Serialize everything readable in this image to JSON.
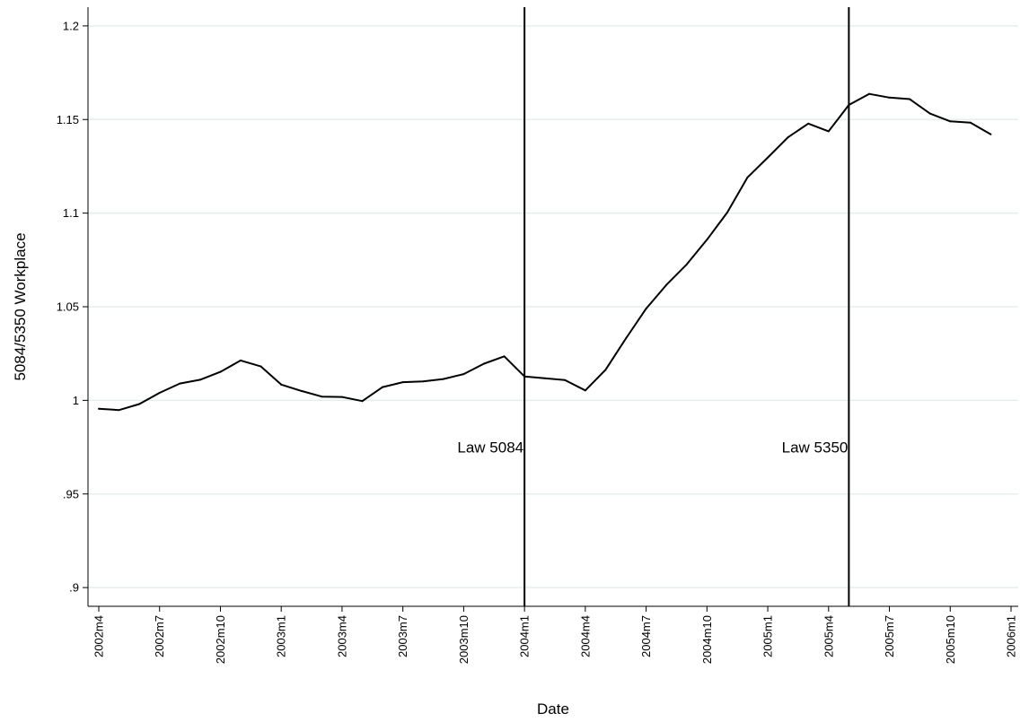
{
  "chart_data": {
    "type": "line",
    "xlabel": "Date",
    "ylabel": "5084/5350 Workplace",
    "ylim": [
      0.89,
      1.21
    ],
    "xlim": [
      "2002m4",
      "2006m1"
    ],
    "grid": true,
    "y_ticks": [
      {
        "value": 0.9,
        "label": ".9"
      },
      {
        "value": 0.95,
        "label": ".95"
      },
      {
        "value": 1.0,
        "label": "1"
      },
      {
        "value": 1.05,
        "label": "1.05"
      },
      {
        "value": 1.1,
        "label": "1.1"
      },
      {
        "value": 1.15,
        "label": "1.15"
      },
      {
        "value": 1.2,
        "label": "1.2"
      }
    ],
    "x_ticks": [
      "2002m4",
      "2002m7",
      "2002m10",
      "2003m1",
      "2003m4",
      "2003m7",
      "2003m10",
      "2004m1",
      "2004m4",
      "2004m7",
      "2004m10",
      "2005m1",
      "2005m4",
      "2005m7",
      "2005m10",
      "2006m1"
    ],
    "series": [
      {
        "color": "#000000",
        "x": [
          "2002m4",
          "2002m5",
          "2002m6",
          "2002m7",
          "2002m8",
          "2002m9",
          "2002m10",
          "2002m11",
          "2002m12",
          "2003m1",
          "2003m2",
          "2003m3",
          "2003m4",
          "2003m5",
          "2003m6",
          "2003m7",
          "2003m8",
          "2003m9",
          "2003m10",
          "2003m11",
          "2003m12",
          "2004m1",
          "2004m2",
          "2004m3",
          "2004m4",
          "2004m5",
          "2004m6",
          "2004m7",
          "2004m8",
          "2004m9",
          "2004m10",
          "2004m11",
          "2004m12",
          "2005m1",
          "2005m2",
          "2005m3",
          "2005m4",
          "2005m5",
          "2005m6",
          "2005m7",
          "2005m8",
          "2005m9",
          "2005m10",
          "2005m11",
          "2005m12"
        ],
        "y": [
          0.9955,
          0.9948,
          0.998,
          1.004,
          1.009,
          1.011,
          1.0152,
          1.0213,
          1.0181,
          1.0084,
          1.005,
          1.002,
          1.0018,
          0.9996,
          1.0071,
          1.0097,
          1.0101,
          1.0114,
          1.014,
          1.0196,
          1.0235,
          1.0128,
          1.0118,
          1.0108,
          1.0053,
          1.0163,
          1.033,
          1.049,
          1.0617,
          1.0726,
          1.0858,
          1.1003,
          1.1191,
          1.1297,
          1.1405,
          1.1478,
          1.1437,
          1.1578,
          1.1637,
          1.1617,
          1.1609,
          1.1532,
          1.149,
          1.1483,
          1.1421
        ]
      }
    ],
    "vlines": [
      {
        "x": "2004m1",
        "label": "Law 5084"
      },
      {
        "x": "2005m5",
        "label": "Law 5350"
      }
    ]
  }
}
